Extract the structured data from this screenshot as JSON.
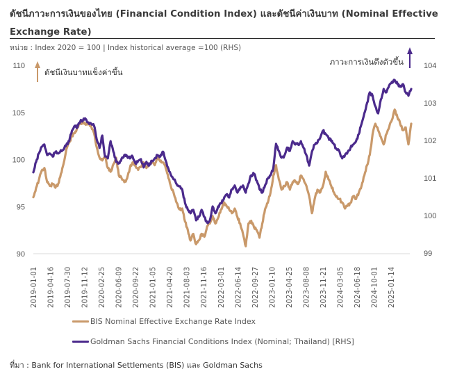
{
  "title": "ดัชนีภาวะการเงินของไทย (Financial Condition Index) และดัชนีค่าเงินบาท (Nominal Effective Exchange Rate)",
  "unit_note": "หน่วย : Index 2020 = 100 | Index historical average =100 (RHS)",
  "source_note": "ที่มา : Bank for International Settlements (BIS) และ Goldman Sachs",
  "colors": {
    "bis": "#C9996A",
    "gs": "#4B2A8C",
    "grid": "#d9d9d9"
  },
  "chart_data": {
    "type": "line",
    "title": "ดัชนีภาวะการเงินของไทย (Financial Condition Index) และดัชนีค่าเงินบาท (Nominal Effective Exchange Rate)",
    "xlabel": "",
    "ylabel": "Index 2020 = 100",
    "ylabel_right": "Index historical average =100 (RHS)",
    "ylim": [
      90,
      110
    ],
    "ylim_right": [
      99,
      104
    ],
    "yticks": [
      "90",
      "95",
      "100",
      "105",
      "110"
    ],
    "yticks_right": [
      "99",
      "100",
      "101",
      "102",
      "103",
      "104"
    ],
    "x_start": "2019-01-01",
    "x_step_days": 17,
    "x_tick_labels": [
      "2019-01-01",
      "2019-04-16",
      "2019-07-30",
      "2019-11-12",
      "2020-02-25",
      "2020-06-09",
      "2020-09-22",
      "2021-01-05",
      "2021-04-20",
      "2021-08-03",
      "2021-11-16",
      "2022-03-01",
      "2022-06-14",
      "2022-09-27",
      "2023-01-10",
      "2023-04-25",
      "2023-08-08",
      "2023-11-21",
      "2024-03-05",
      "2024-06-18",
      "2024-10-01",
      "2025-01-14"
    ],
    "grid": false,
    "legend_position": "bottom",
    "annotations": [
      {
        "text": "ดัชนีเงินบาทแข็งค่าขึ้น",
        "axis": "left",
        "position": "top-left",
        "arrow": "up"
      },
      {
        "text": "ภาวะการเงินตึงตัวขึ้น",
        "axis": "right",
        "position": "top-right",
        "arrow": "up"
      }
    ],
    "series": [
      {
        "name": "BIS Nominal Effective Exchange Rate Index",
        "axis": "left",
        "values": [
          96.0,
          97.0,
          97.8,
          98.8,
          99.1,
          97.6,
          97.2,
          97.4,
          97.0,
          97.4,
          98.5,
          99.6,
          101.1,
          101.8,
          102.5,
          102.8,
          103.4,
          103.8,
          103.9,
          103.7,
          103.9,
          103.5,
          102.8,
          101.3,
          100.2,
          99.9,
          100.4,
          99.1,
          98.7,
          99.5,
          100.2,
          98.3,
          98.0,
          97.6,
          98.0,
          99.1,
          99.7,
          99.4,
          98.9,
          99.2,
          99.7,
          99.1,
          99.4,
          99.7,
          99.4,
          100.2,
          99.8,
          99.7,
          99.1,
          98.0,
          97.0,
          96.3,
          95.4,
          94.7,
          94.8,
          93.4,
          92.5,
          91.4,
          92.1,
          91.0,
          91.4,
          92.1,
          91.8,
          92.9,
          93.2,
          94.0,
          93.2,
          93.8,
          94.7,
          95.4,
          95.1,
          94.7,
          94.3,
          94.8,
          93.9,
          93.2,
          92.1,
          90.8,
          93.2,
          93.5,
          92.8,
          92.5,
          91.7,
          93.2,
          94.7,
          95.4,
          96.5,
          98.3,
          99.4,
          97.9,
          96.8,
          97.2,
          97.6,
          96.8,
          97.6,
          97.7,
          97.4,
          98.3,
          97.9,
          97.2,
          96.1,
          94.3,
          95.8,
          96.8,
          96.5,
          97.2,
          98.7,
          97.9,
          97.2,
          96.5,
          96.1,
          95.8,
          95.4,
          94.8,
          95.1,
          95.4,
          96.1,
          95.8,
          96.5,
          97.2,
          98.3,
          99.4,
          100.5,
          102.7,
          103.8,
          103.1,
          102.4,
          101.6,
          102.7,
          103.4,
          104.2,
          105.3,
          104.5,
          103.8,
          103.1,
          103.4,
          101.6,
          103.8
        ]
      },
      {
        "name": "Goldman Sachs Financial Conditions Index (Nominal; Thailand) [RHS]",
        "axis": "right",
        "values": [
          101.15,
          101.43,
          101.65,
          101.83,
          101.89,
          101.61,
          101.65,
          101.57,
          101.69,
          101.65,
          101.74,
          101.76,
          101.89,
          101.98,
          102.26,
          102.39,
          102.35,
          102.5,
          102.54,
          102.57,
          102.48,
          102.44,
          102.39,
          102.02,
          101.8,
          102.13,
          101.57,
          101.52,
          101.98,
          101.7,
          101.43,
          101.39,
          101.52,
          101.61,
          101.57,
          101.52,
          101.57,
          101.39,
          101.46,
          101.5,
          101.28,
          101.43,
          101.33,
          101.46,
          101.52,
          101.61,
          101.57,
          101.7,
          101.46,
          101.24,
          101.06,
          100.96,
          100.83,
          100.78,
          100.69,
          100.33,
          100.15,
          100.06,
          100.15,
          99.87,
          99.96,
          100.15,
          99.96,
          99.81,
          99.87,
          100.24,
          100.06,
          100.24,
          100.33,
          100.43,
          100.56,
          100.48,
          100.7,
          100.8,
          100.61,
          100.74,
          100.8,
          100.61,
          100.85,
          101.07,
          101.11,
          100.93,
          100.7,
          100.61,
          100.8,
          100.98,
          101.07,
          101.26,
          101.91,
          101.72,
          101.54,
          101.59,
          101.81,
          101.72,
          101.98,
          101.89,
          101.89,
          101.98,
          101.8,
          101.61,
          101.33,
          101.7,
          101.89,
          101.94,
          102.07,
          102.26,
          102.17,
          102.07,
          101.98,
          101.89,
          101.76,
          101.7,
          101.52,
          101.61,
          101.7,
          101.8,
          101.89,
          101.98,
          102.17,
          102.44,
          102.72,
          103.0,
          103.28,
          103.19,
          102.91,
          102.72,
          103.09,
          103.37,
          103.28,
          103.46,
          103.56,
          103.61,
          103.5,
          103.43,
          103.5,
          103.28,
          103.19,
          103.37
        ]
      }
    ]
  }
}
